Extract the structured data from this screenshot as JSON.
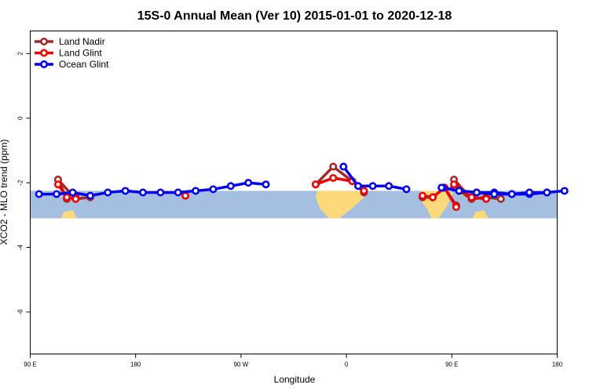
{
  "chart_data": {
    "type": "line",
    "title": "15S-0 Annual Mean (Ver 10)   2015-01-01 to 2020-12-18",
    "xlabel": "Longitude",
    "ylabel": "XCO2 - MLO trend (ppm)",
    "xlim": [
      90,
      450
    ],
    "ylim": [
      -7.3,
      2.7
    ],
    "x_ticks": [
      90,
      162,
      234,
      306,
      378,
      450
    ],
    "x_tick_labels": [
      "90 E",
      "180",
      "90 W",
      "0",
      "90 E",
      "180"
    ],
    "y_ticks": [
      2,
      0,
      -2,
      -4,
      -6
    ],
    "y_tick_labels": [
      "2",
      "0",
      "-2",
      "-4",
      "-6"
    ],
    "legend_position": "top-left",
    "map_band": {
      "y_top": -2.25,
      "y_bottom": -3.1,
      "ocean_color": "#a5bfe0",
      "land_color": "#fcd97a"
    },
    "series": [
      {
        "name": "Land Nadir",
        "color": "#a52a2a",
        "segments": [
          {
            "x": [
              109,
              121,
              131
            ],
            "y": [
              -1.9,
              -2.5,
              -2.45
            ]
          },
          {
            "x": [
              285,
              297,
              310,
              318
            ],
            "y": [
              -2.05,
              -1.5,
              -1.95,
              -2.3
            ]
          },
          {
            "x": [
              358,
              365,
              373,
              381
            ],
            "y": [
              -2.45,
              -2.45,
              -2.15,
              -2.7
            ]
          },
          {
            "x": [
              379.5,
              391.5,
              401.5,
              411.5
            ],
            "y": [
              -2.15,
              -2.5,
              -2.45,
              -2.5
            ]
          },
          {
            "x": [
              109,
              115,
              121
            ],
            "y": [
              -1.9,
              -2.5,
              -2.45
            ]
          },
          {
            "x": [
              379.5,
              391.5,
              401.5
            ],
            "y": [
              -1.9,
              -2.5,
              -2.45
            ]
          }
        ]
      },
      {
        "name": "Land Glint",
        "color": "#ee0000",
        "segments": [
          {
            "x": [
              109,
              115,
              121
            ],
            "y": [
              -2.05,
              -2.45,
              -2.5
            ]
          },
          {
            "x": [
              196
            ],
            "y": [
              -2.4
            ]
          },
          {
            "x": [
              285,
              297,
              310,
              318
            ],
            "y": [
              -2.05,
              -1.85,
              -1.95,
              -2.25
            ]
          },
          {
            "x": [
              358,
              365,
              373,
              381
            ],
            "y": [
              -2.4,
              -2.45,
              -2.15,
              -2.75
            ]
          },
          {
            "x": [
              379.5,
              391.5,
              401.5
            ],
            "y": [
              -2.05,
              -2.45,
              -2.5
            ]
          }
        ]
      },
      {
        "name": "Ocean Glint",
        "color": "#0000ee",
        "segments": [
          {
            "x": [
              96,
              108,
              119,
              131,
              143,
              155,
              167,
              179,
              191,
              203,
              215,
              227,
              239,
              251
            ],
            "y": [
              -2.35,
              -2.35,
              -2.3,
              -2.4,
              -2.3,
              -2.25,
              -2.3,
              -2.3,
              -2.3,
              -2.25,
              -2.2,
              -2.1,
              -2.0,
              -2.05
            ]
          },
          {
            "x": [
              304,
              314,
              324,
              335,
              347
            ],
            "y": [
              -1.5,
              -2.1,
              -2.1,
              -2.1,
              -2.2
            ]
          },
          {
            "x": [
              372,
              383,
              395,
              407,
              419,
              431,
              443
            ],
            "y": [
              -2.15,
              -2.25,
              -2.3,
              -2.3,
              -2.35,
              -2.35,
              -2.3
            ]
          },
          {
            "x": [
              371,
              383,
              395,
              407,
              419,
              431,
              443,
              455
            ],
            "y": [
              -2.15,
              -2.25,
              -2.3,
              -2.35,
              -2.35,
              -2.3,
              -2.3,
              -2.25
            ]
          }
        ]
      }
    ]
  }
}
